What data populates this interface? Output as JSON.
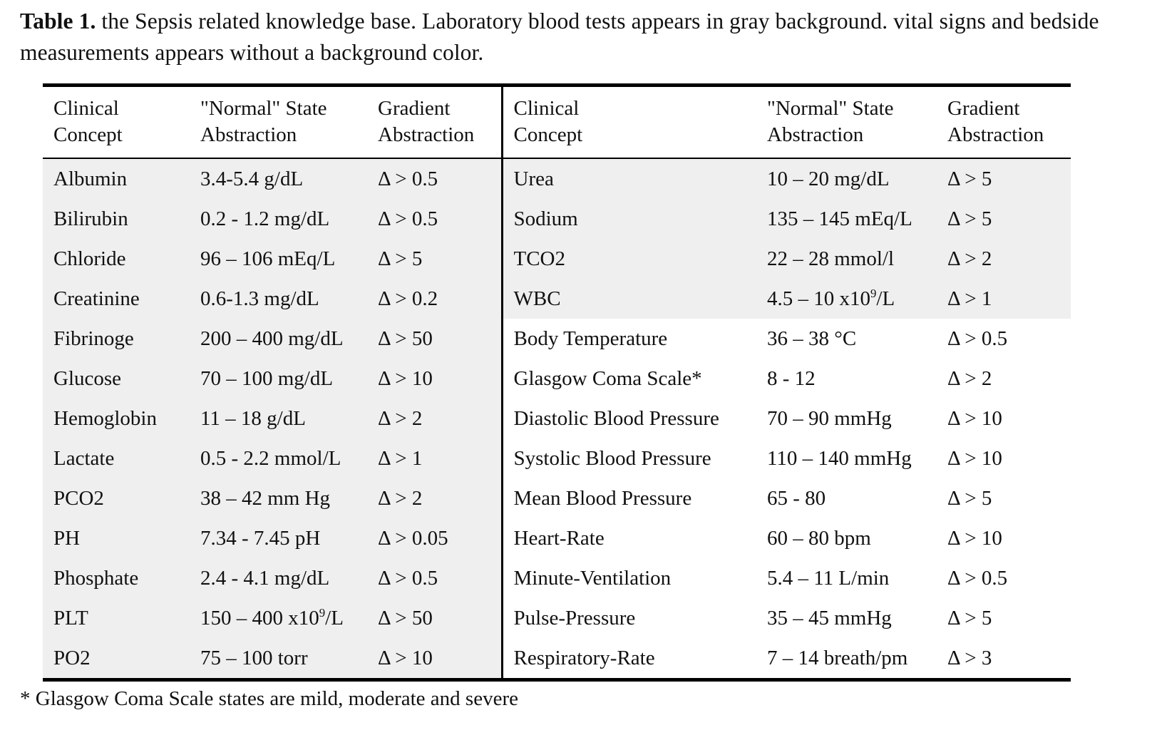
{
  "caption": {
    "label": "Table 1.",
    "text": " the Sepsis related knowledge base. Laboratory blood tests appears in gray background. vital signs and bedside measurements appears without a background color."
  },
  "headers": {
    "left": {
      "concept": [
        "Clinical",
        "Concept"
      ],
      "normal": [
        "\"Normal\" State",
        "Abstraction"
      ],
      "gradient": [
        "Gradient",
        "Abstraction"
      ]
    },
    "right": {
      "concept": [
        "Clinical",
        "Concept"
      ],
      "normal": [
        "\"Normal\" State",
        "Abstraction"
      ],
      "gradient": [
        "Gradient",
        "Abstraction"
      ]
    }
  },
  "rows": [
    {
      "left": [
        "Albumin",
        "3.4-5.4 g/dL",
        "Δ > 0.5"
      ],
      "right": [
        "Urea",
        "10 – 20 mg/dL",
        "Δ > 5"
      ],
      "right_lab": true
    },
    {
      "left": [
        "Bilirubin",
        "0.2 - 1.2 mg/dL",
        "Δ > 0.5"
      ],
      "right": [
        "Sodium",
        "135 – 145 mEq/L",
        "Δ > 5"
      ],
      "right_lab": true
    },
    {
      "left": [
        "Chloride",
        "96 – 106 mEq/L",
        "Δ > 5"
      ],
      "right": [
        "TCO2",
        "22 – 28 mmol/l",
        "Δ > 2"
      ],
      "right_lab": true
    },
    {
      "left": [
        "Creatinine",
        "0.6-1.3 mg/dL",
        "Δ > 0.2"
      ],
      "right": [
        "WBC",
        "4.5 – 10 x10⁹/L",
        "Δ > 1"
      ],
      "right_lab": true
    },
    {
      "left": [
        "Fibrinoge",
        "200 – 400 mg/dL",
        "Δ > 50"
      ],
      "right": [
        "Body Temperature",
        "36 – 38 °C",
        "Δ > 0.5"
      ],
      "right_lab": false
    },
    {
      "left": [
        "Glucose",
        "70 – 100 mg/dL",
        "Δ > 10"
      ],
      "right": [
        "Glasgow Coma Scale*",
        "8 - 12",
        "Δ > 2"
      ],
      "right_lab": false
    },
    {
      "left": [
        "Hemoglobin",
        "11 – 18 g/dL",
        "Δ > 2"
      ],
      "right": [
        "Diastolic Blood Pressure",
        "70 – 90 mmHg",
        "Δ > 10"
      ],
      "right_lab": false
    },
    {
      "left": [
        "Lactate",
        "0.5 - 2.2 mmol/L",
        "Δ > 1"
      ],
      "right": [
        "Systolic Blood Pressure",
        "110 – 140 mmHg",
        "Δ > 10"
      ],
      "right_lab": false
    },
    {
      "left": [
        "PCO2",
        "38 – 42 mm Hg",
        "Δ > 2"
      ],
      "right": [
        "Mean Blood Pressure",
        "65 - 80",
        "Δ > 5"
      ],
      "right_lab": false
    },
    {
      "left": [
        "PH",
        "7.34 - 7.45 pH",
        "Δ > 0.05"
      ],
      "right": [
        "Heart-Rate",
        "60 – 80 bpm",
        "Δ > 10"
      ],
      "right_lab": false
    },
    {
      "left": [
        "Phosphate",
        "2.4 - 4.1 mg/dL",
        "Δ > 0.5"
      ],
      "right": [
        "Minute-Ventilation",
        "5.4 – 11 L/min",
        "Δ > 0.5"
      ],
      "right_lab": false
    },
    {
      "left": [
        "PLT",
        "150 – 400 x10⁹/L",
        "Δ > 50"
      ],
      "right": [
        "Pulse-Pressure",
        "35 – 45 mmHg",
        "Δ > 5"
      ],
      "right_lab": false
    },
    {
      "left": [
        "PO2",
        "75 – 100 torr",
        "Δ > 10"
      ],
      "right": [
        "Respiratory-Rate",
        "7 – 14 breath/pm",
        "Δ > 3"
      ],
      "right_lab": false
    }
  ],
  "footnote": "* Glasgow Coma Scale states are mild, moderate and severe",
  "colors": {
    "lab_background": "#efefef",
    "rule": "#000000",
    "text": "#111111"
  }
}
